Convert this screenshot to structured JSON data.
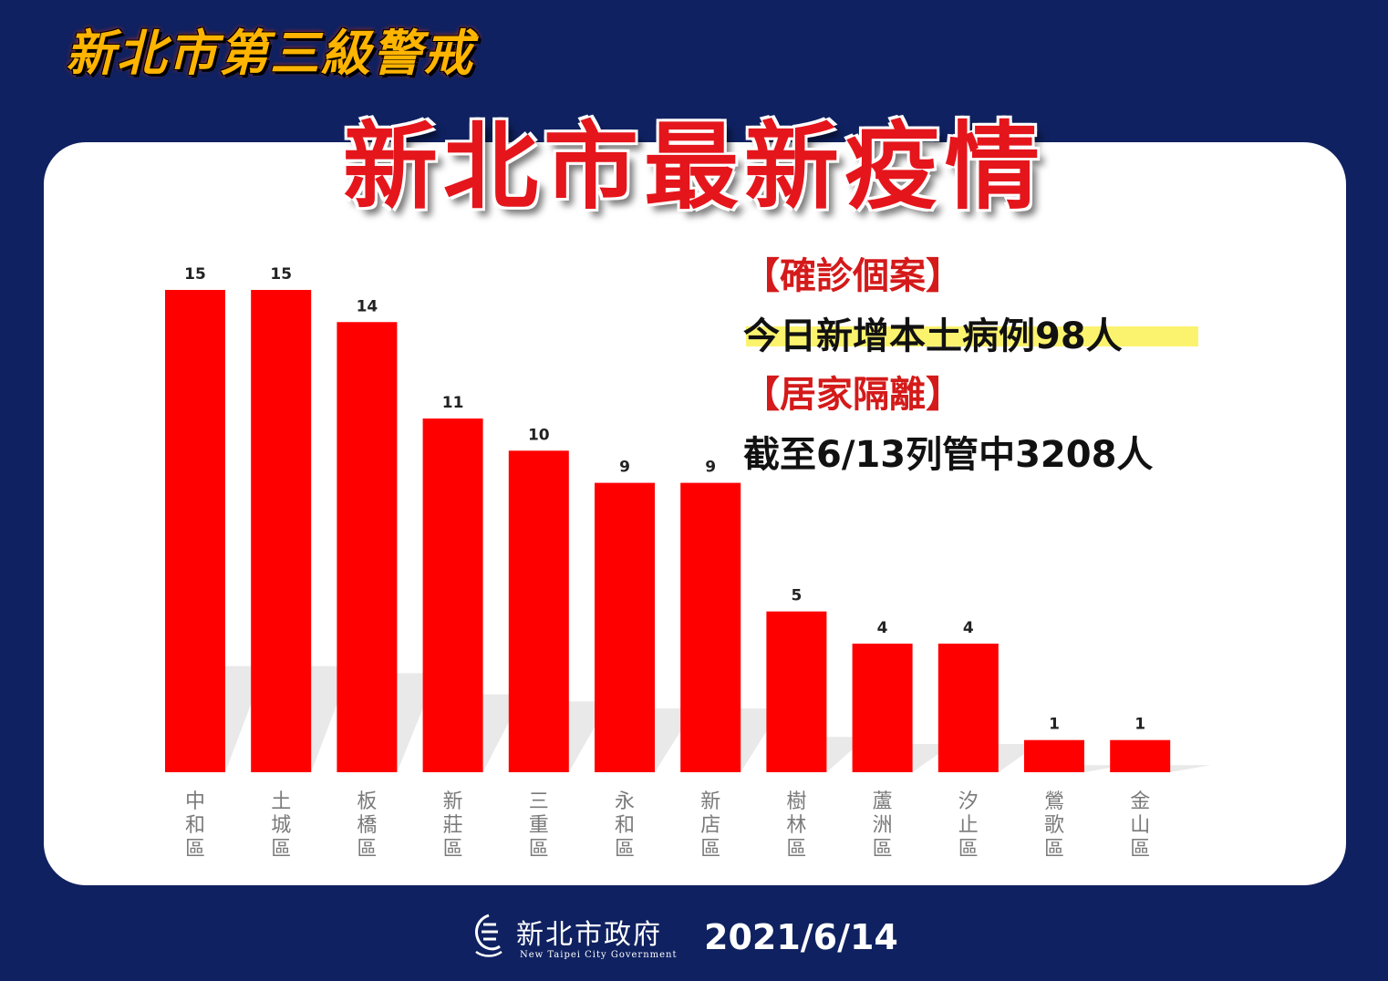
{
  "header": {
    "alert_title": "新北市第三級警戒",
    "main_title": "新北市最新疫情"
  },
  "info": {
    "confirmed_heading": "【確診個案】",
    "confirmed_text": "今日新增本土病例98人",
    "quarantine_heading": "【居家隔離】",
    "quarantine_text": "截至6/13列管中3208人"
  },
  "footer": {
    "org_name": "新北市政府",
    "org_name_en": "New Taipei City Government",
    "date": "2021/6/14"
  },
  "colors": {
    "background": "#0f2160",
    "bar": "#ff0000",
    "title_red": "#e4161c",
    "highlight": "#fbf36e"
  },
  "chart_data": {
    "type": "bar",
    "title": "",
    "xlabel": "",
    "ylabel": "",
    "categories": [
      "中和區",
      "土城區",
      "板橋區",
      "新莊區",
      "三重區",
      "永和區",
      "新店區",
      "樹林區",
      "蘆洲區",
      "汐止區",
      "鶯歌區",
      "金山區"
    ],
    "values": [
      15,
      15,
      14,
      11,
      10,
      9,
      9,
      5,
      4,
      4,
      1,
      1
    ],
    "ylim": [
      0,
      15
    ],
    "grid": false,
    "legend": "none",
    "data_labels": true
  }
}
